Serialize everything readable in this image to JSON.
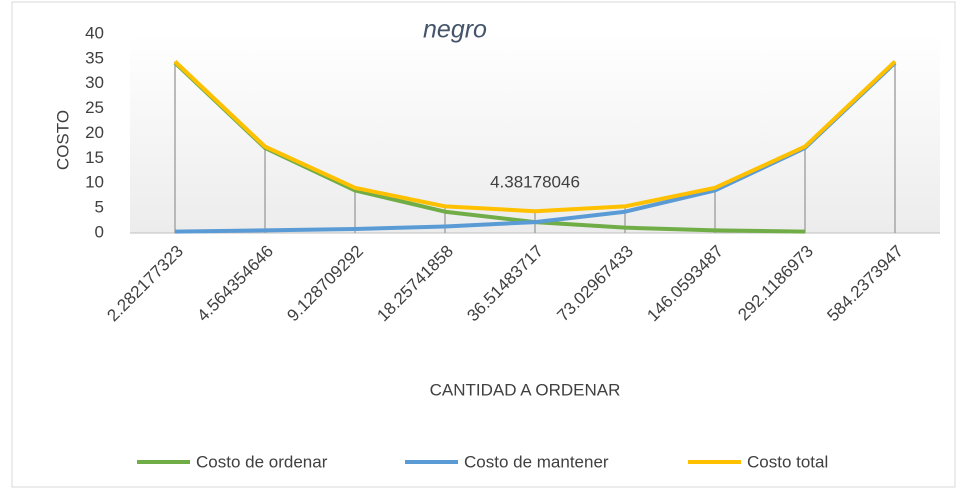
{
  "chart_data": {
    "type": "line",
    "title": "negro",
    "xlabel": "CANTIDAD A ORDENAR",
    "ylabel": "COSTO",
    "categories": [
      "2.282177323",
      "4.564354646",
      "9.128709292",
      "18.25741858",
      "36.51483717",
      "73.02967433",
      "146.0593487",
      "292.1186973",
      "584.2373947"
    ],
    "series": [
      {
        "name": "Costo de ordenar",
        "color": "#70ad47",
        "values": [
          34.2,
          17.1,
          8.55,
          4.28,
          2.19,
          1.07,
          0.53,
          0.27,
          null
        ]
      },
      {
        "name": "Costo de mantener",
        "color": "#5b9bd5",
        "values": [
          0.27,
          0.53,
          0.8,
          1.3,
          2.19,
          4.28,
          8.55,
          17.1,
          34.2
        ]
      },
      {
        "name": "Costo total",
        "color": "#ffc000",
        "values": [
          34.47,
          17.37,
          9.09,
          5.35,
          4.38178046,
          5.35,
          9.09,
          17.37,
          34.47
        ]
      }
    ],
    "ylim": [
      0,
      40
    ],
    "yticks": [
      0,
      5,
      10,
      15,
      20,
      25,
      30,
      35,
      40
    ],
    "grid": false
  }
}
